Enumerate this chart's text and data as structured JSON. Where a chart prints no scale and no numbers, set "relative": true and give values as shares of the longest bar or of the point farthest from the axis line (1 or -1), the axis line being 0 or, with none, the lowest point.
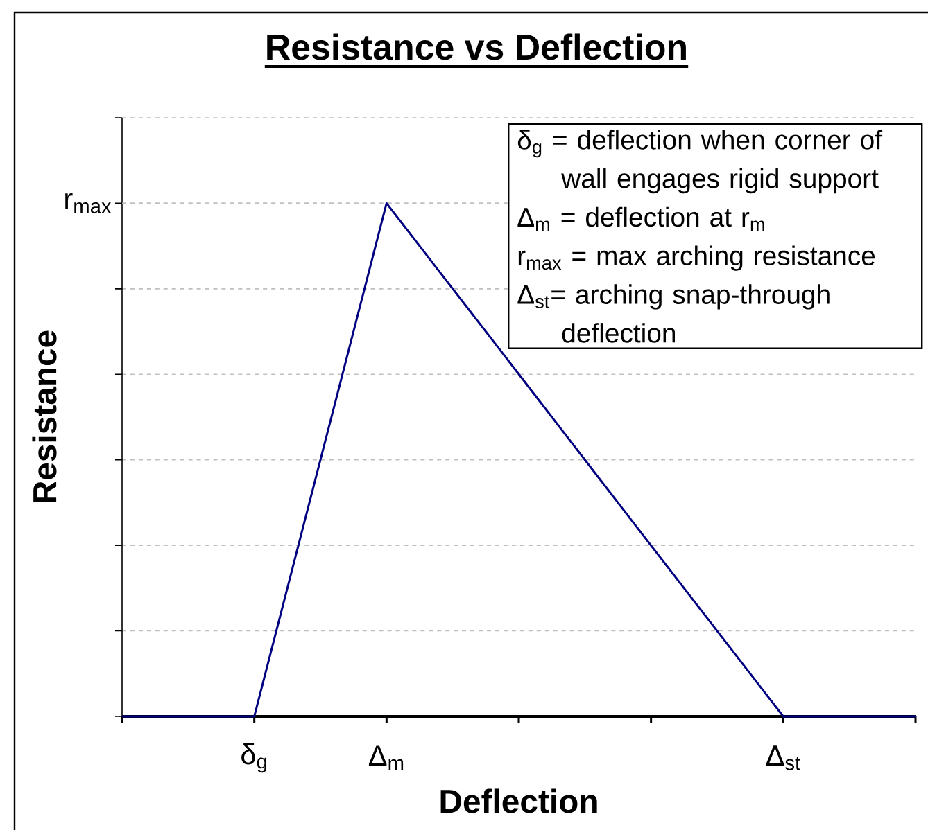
{
  "chart_data": {
    "type": "line",
    "title": "Resistance vs Deflection",
    "xlabel": "Deflection",
    "ylabel": "Resistance",
    "categories": [
      null,
      "δ$_{g}$",
      "Δ$_{m}$",
      null,
      null,
      "Δ$_{st}$",
      null
    ],
    "values": [
      0,
      0,
      1,
      0.667,
      0.333,
      0,
      0
    ],
    "color": "#000080",
    "relative": true,
    "grid": "y",
    "marker": "none",
    "line_style": "solid",
    "ref_lines": [
      {
        "axis": "y",
        "value": 1,
        "label": "r$_{max}$",
        "color": "#c0c0c0",
        "line_style": "dashed"
      }
    ],
    "annotations": [
      "δ$_{g}$ = deflection when corner of wall engages rigid support",
      "Δ$_{m}$ = deflection at r$_{m}$",
      "r$_{max}$ = max arching resistance",
      "Δ$_{st}$= arching snap-through deflection"
    ]
  }
}
